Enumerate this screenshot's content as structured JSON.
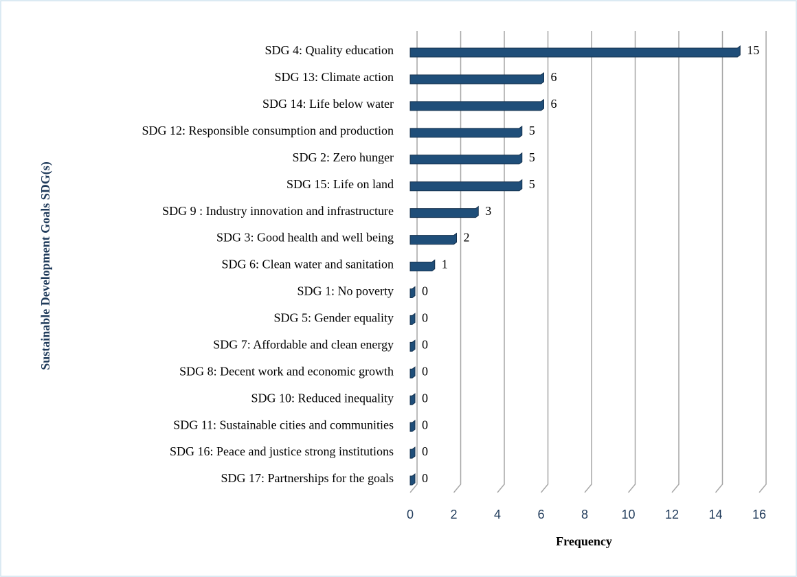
{
  "chart_data": {
    "type": "bar",
    "orientation": "horizontal",
    "x_label": "Frequency",
    "y_label": "Sustainable Development Goals SDG(s)",
    "categories": [
      "SDG 4: Quality education",
      "SDG 13: Climate action",
      "SDG 14: Life below water",
      "SDG 12: Responsible consumption and production",
      "SDG 2: Zero hunger",
      "SDG 15: Life on land",
      "SDG 9 : Industry innovation and infrastructure",
      "SDG 3: Good health and well being",
      "SDG 6: Clean water and sanitation",
      "SDG 1: No poverty",
      "SDG 5: Gender equality",
      "SDG 7: Affordable and clean energy",
      "SDG 8: Decent work and economic growth",
      "SDG 10: Reduced inequality",
      "SDG 11: Sustainable cities and communities",
      "SDG 16: Peace and justice strong institutions",
      "SDG 17: Partnerships for the goals"
    ],
    "values": [
      15,
      6,
      6,
      5,
      5,
      5,
      3,
      2,
      1,
      0,
      0,
      0,
      0,
      0,
      0,
      0,
      0
    ],
    "color": "#1f4e79",
    "xlim": [
      0,
      16
    ],
    "xticks": [
      0,
      2,
      4,
      6,
      8,
      10,
      12,
      14,
      16
    ],
    "grid": true
  }
}
